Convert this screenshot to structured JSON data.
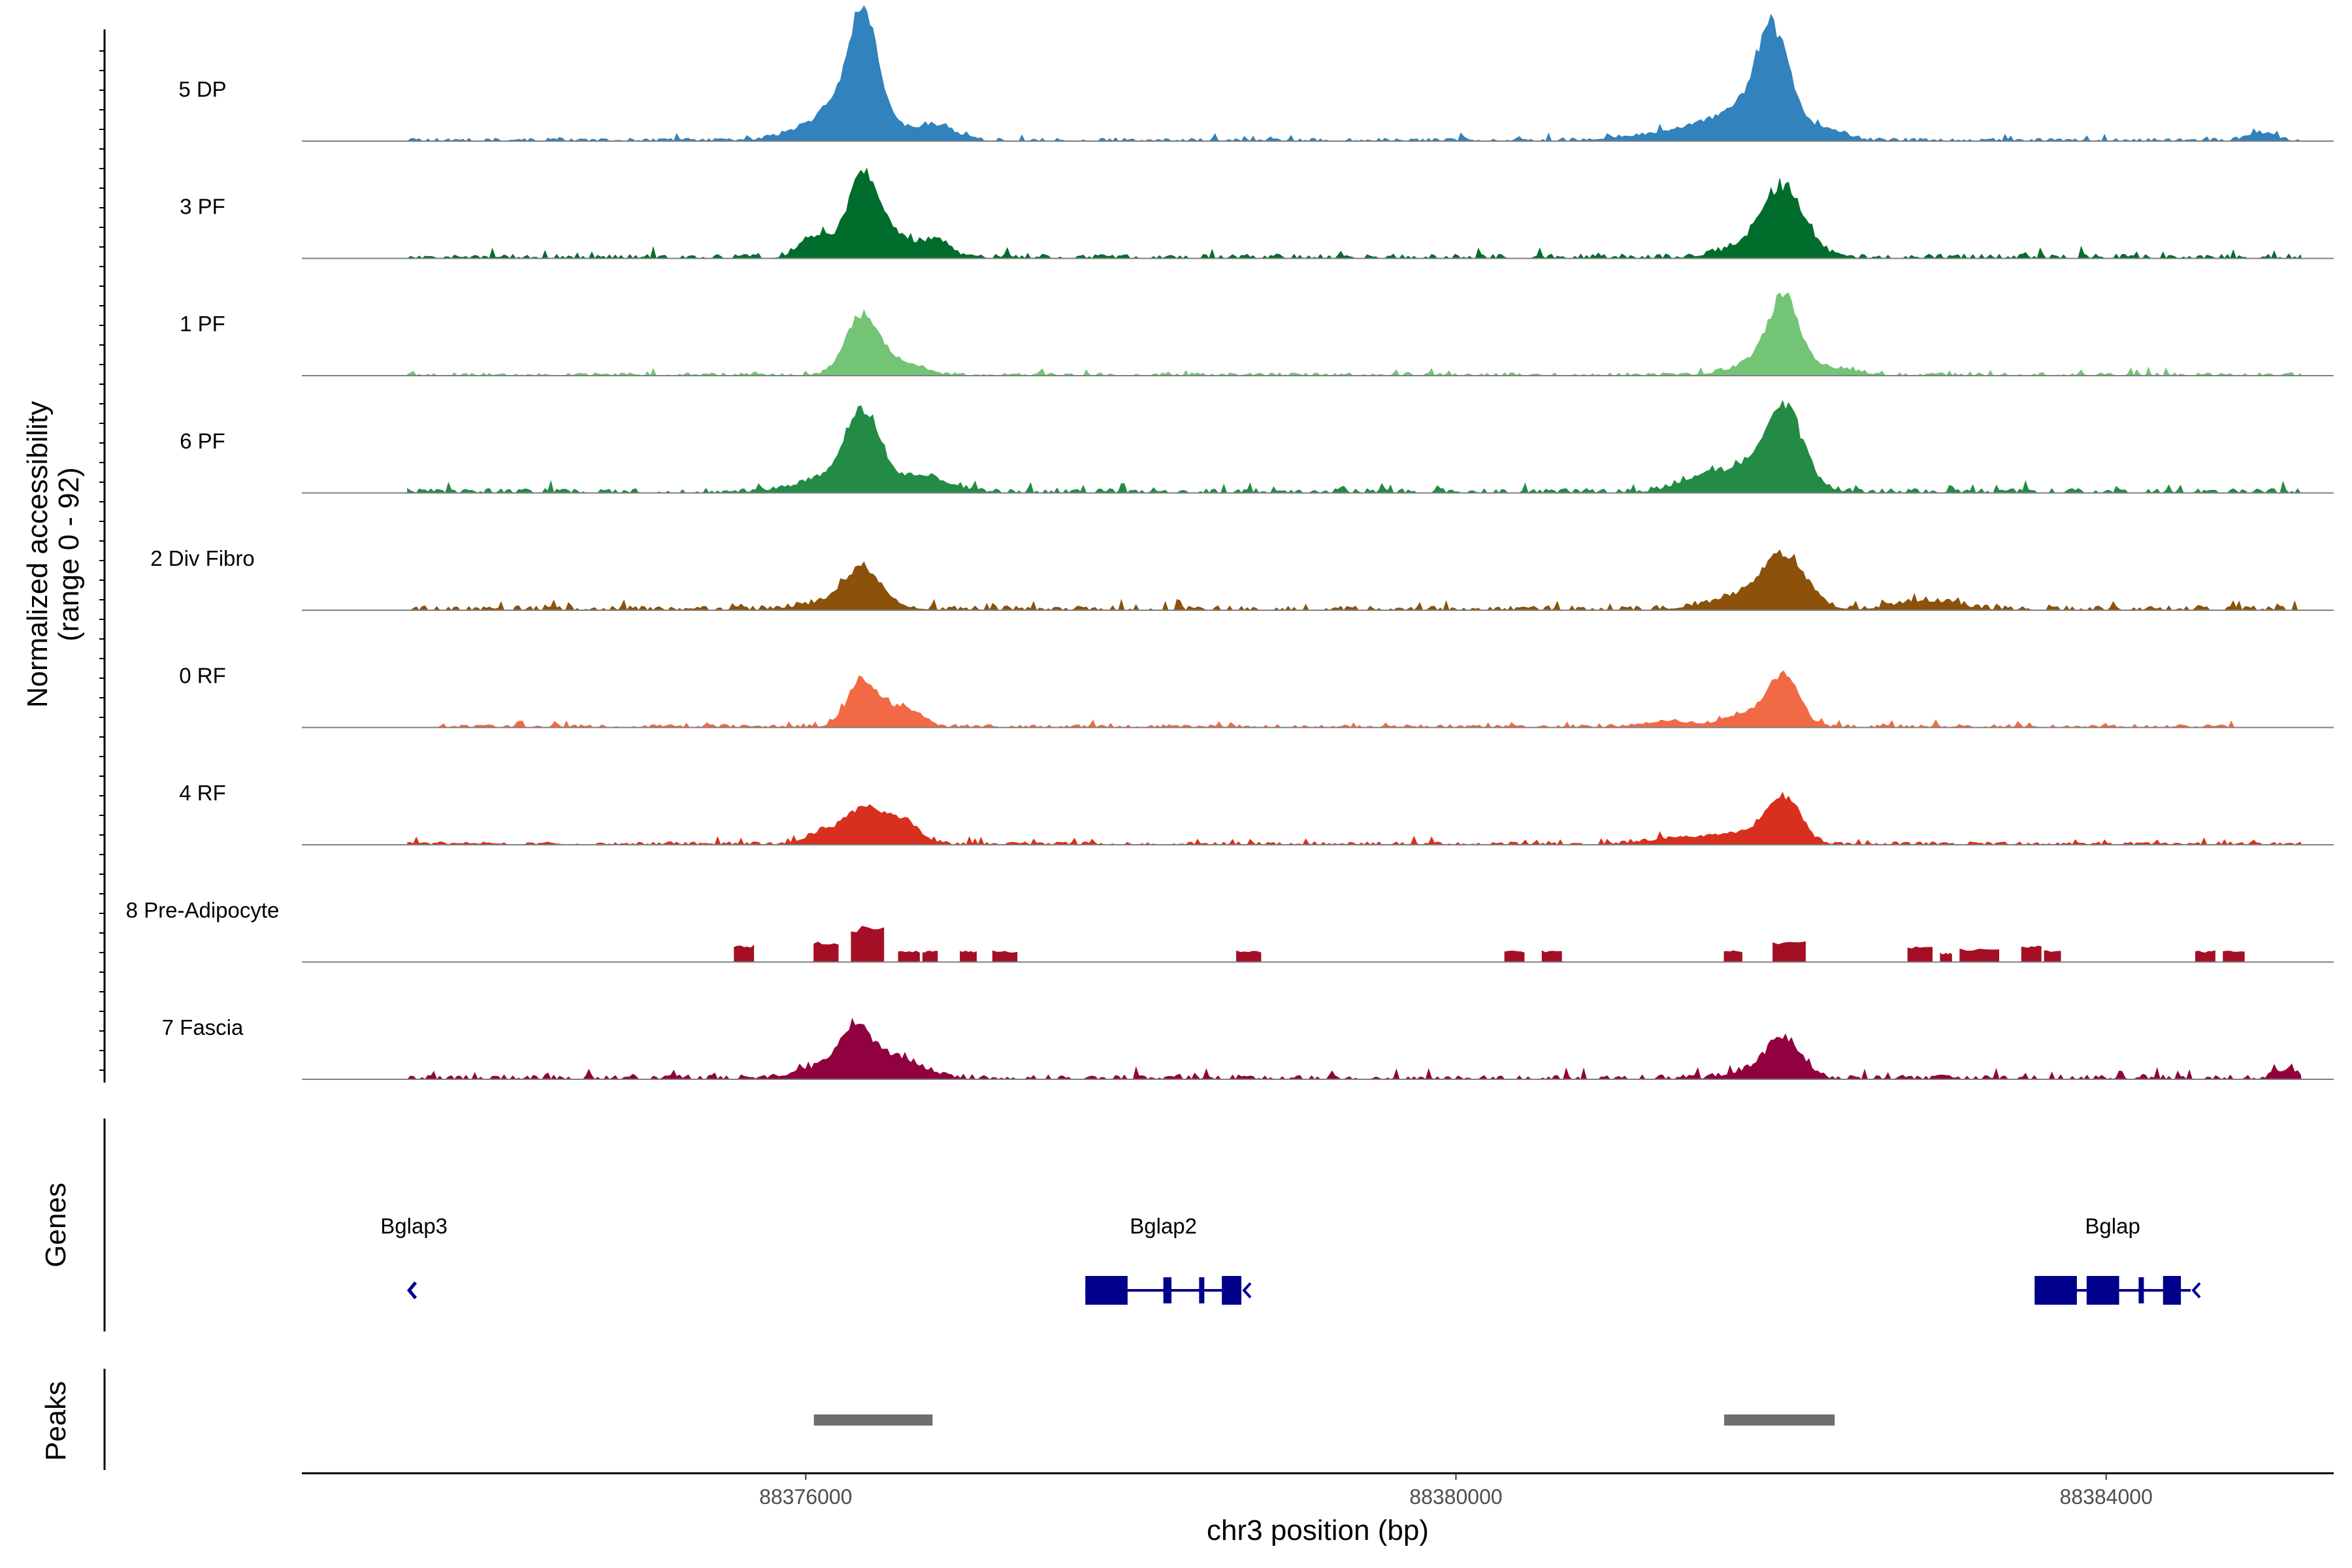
{
  "chart_data": {
    "type": "area",
    "ylabel_line1": "Normalized accessibility",
    "ylabel_line2": "(range 0 - 92)",
    "ylim": [
      0,
      92
    ],
    "xlabel": "chr3 position (bp)",
    "xlim": [
      88372900,
      88385400
    ],
    "x_ticks": [
      {
        "value": 88376000,
        "label": "88376000"
      },
      {
        "value": 88380000,
        "label": "88380000"
      },
      {
        "value": 88384000,
        "label": "88384000"
      }
    ],
    "series": [
      {
        "name": "5 DP",
        "color": "#3182bd",
        "baseline": 2,
        "peaks": [
          [
            88376350,
            90,
            90
          ],
          [
            88376250,
            30,
            220
          ],
          [
            88376800,
            12,
            120
          ],
          [
            88381950,
            75,
            100
          ],
          [
            88381820,
            28,
            240
          ],
          [
            88382300,
            7,
            100
          ],
          [
            88381300,
            6,
            250
          ],
          [
            88384950,
            7,
            80
          ]
        ],
        "noise_start": 88373550,
        "noise_end": 88385200
      },
      {
        "name": "3 PF",
        "color": "#006d2c",
        "baseline": 3,
        "peaks": [
          [
            88376350,
            75,
            90
          ],
          [
            88376060,
            20,
            90
          ],
          [
            88376550,
            18,
            110
          ],
          [
            88376800,
            14,
            90
          ],
          [
            88382020,
            50,
            120
          ],
          [
            88381900,
            15,
            200
          ]
        ],
        "noise_start": 88373550,
        "noise_end": 88385200
      },
      {
        "name": "1 PF",
        "color": "#74c476",
        "baseline": 2,
        "peaks": [
          [
            88376350,
            52,
            100
          ],
          [
            88376600,
            10,
            120
          ],
          [
            88382020,
            62,
            100
          ],
          [
            88381850,
            10,
            160
          ],
          [
            88382350,
            6,
            120
          ]
        ],
        "noise_start": 88373550,
        "noise_end": 88385200
      },
      {
        "name": "6 PF",
        "color": "#238b45",
        "baseline": 3,
        "peaks": [
          [
            88376350,
            62,
            100
          ],
          [
            88376250,
            15,
            250
          ],
          [
            88376750,
            12,
            150
          ],
          [
            88382020,
            62,
            110
          ],
          [
            88381850,
            20,
            220
          ],
          [
            88381500,
            10,
            150
          ]
        ],
        "noise_start": 88373550,
        "noise_end": 88385200
      },
      {
        "name": "2 Div Fibro",
        "color": "#8c510a",
        "baseline": 3,
        "peaks": [
          [
            88376350,
            30,
            110
          ],
          [
            88376250,
            8,
            220
          ],
          [
            88382020,
            42,
            130
          ],
          [
            88381800,
            12,
            220
          ],
          [
            88382900,
            8,
            180
          ]
        ],
        "noise_start": 88373550,
        "noise_end": 88385200
      },
      {
        "name": "0 RF",
        "color": "#f16a45",
        "baseline": 2,
        "peaks": [
          [
            88376350,
            42,
            90
          ],
          [
            88376600,
            18,
            100
          ],
          [
            88382020,
            45,
            90
          ],
          [
            88381800,
            12,
            140
          ],
          [
            88381300,
            5,
            150
          ]
        ],
        "noise_start": 88373700,
        "noise_end": 88384800
      },
      {
        "name": "4 RF",
        "color": "#d7301f",
        "baseline": 2,
        "peaks": [
          [
            88376350,
            32,
            110
          ],
          [
            88376600,
            20,
            100
          ],
          [
            88376100,
            10,
            100
          ],
          [
            88382020,
            40,
            100
          ],
          [
            88381800,
            10,
            150
          ],
          [
            88381400,
            6,
            200
          ]
        ],
        "noise_start": 88373550,
        "noise_end": 88385200
      },
      {
        "name": "8 Pre-Adipocyte",
        "color": "#a50f26",
        "baseline": 0,
        "blocks": [
          [
            88375560,
            88375680,
            15
          ],
          [
            88376050,
            88376200,
            18
          ],
          [
            88376280,
            88376480,
            32
          ],
          [
            88376570,
            88376700,
            10
          ],
          [
            88376720,
            88376810,
            10
          ],
          [
            88376950,
            88377050,
            10
          ],
          [
            88377150,
            88377300,
            10
          ],
          [
            88378650,
            88378800,
            10
          ],
          [
            88380300,
            88380420,
            10
          ],
          [
            88380530,
            88380650,
            10
          ],
          [
            88381650,
            88381760,
            10
          ],
          [
            88381950,
            88382150,
            18
          ],
          [
            88382780,
            88382930,
            14
          ],
          [
            88382980,
            88383050,
            8
          ],
          [
            88383100,
            88383340,
            12
          ],
          [
            88383480,
            88383600,
            15
          ],
          [
            88383620,
            88383720,
            10
          ],
          [
            88384550,
            88384670,
            10
          ],
          [
            88384720,
            88384850,
            10
          ]
        ]
      },
      {
        "name": "7 Fascia",
        "color": "#91003f",
        "baseline": 3,
        "peaks": [
          [
            88376300,
            32,
            90
          ],
          [
            88376550,
            18,
            160
          ],
          [
            88376200,
            12,
            200
          ],
          [
            88382020,
            32,
            100
          ],
          [
            88381850,
            8,
            150
          ],
          [
            88385120,
            8,
            70
          ]
        ],
        "noise_start": 88373550,
        "noise_end": 88385200
      }
    ],
    "genes": [
      {
        "name": "Bglap3",
        "strand": "-",
        "exons": [],
        "start": 88373560,
        "end": 88373620
      },
      {
        "name": "Bglap2",
        "strand": "-",
        "start": 88377720,
        "end": 88378680,
        "exons": [
          [
            88377720,
            88377980
          ],
          [
            88378200,
            88378250
          ],
          [
            88378420,
            88378450
          ],
          [
            88378560,
            88378680
          ]
        ]
      },
      {
        "name": "Bglap",
        "strand": "-",
        "start": 88383560,
        "end": 88384520,
        "exons": [
          [
            88383560,
            88383820
          ],
          [
            88383880,
            88384080
          ],
          [
            88384200,
            88384230
          ],
          [
            88384350,
            88384460
          ]
        ]
      }
    ],
    "peak_regions": [
      [
        88376050,
        88376780
      ],
      [
        88381650,
        88382330
      ]
    ],
    "genes_track_label": "Genes",
    "peaks_track_label": "Peaks",
    "gene_color": "#00008b",
    "peak_color": "#6e6e6e"
  }
}
